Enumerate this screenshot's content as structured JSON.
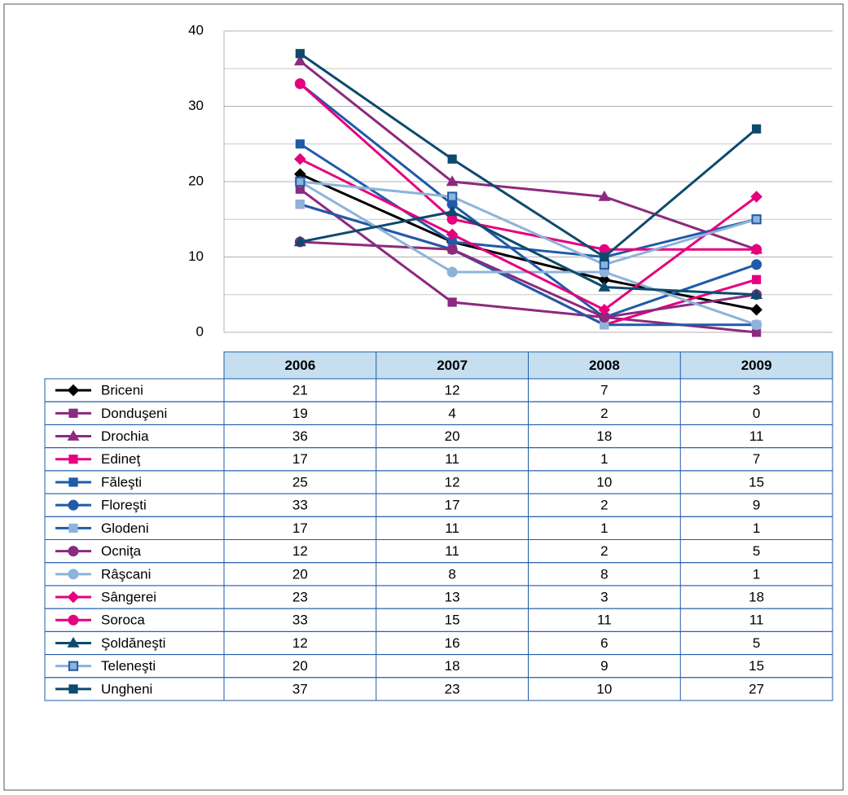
{
  "chart_data": {
    "type": "line",
    "categories": [
      "2006",
      "2007",
      "2008",
      "2009"
    ],
    "ylim": [
      0,
      40
    ],
    "yticks": [
      0,
      10,
      20,
      30,
      40
    ],
    "minor_grid": [
      5,
      15,
      25,
      35
    ],
    "grid": true,
    "series": [
      {
        "name": "Briceni",
        "color": "#000000",
        "marker": "diamond",
        "values": [
          21,
          12,
          7,
          3
        ]
      },
      {
        "name": "Donduşeni",
        "color": "#8b2a7e",
        "marker": "square",
        "values": [
          19,
          4,
          2,
          0
        ]
      },
      {
        "name": "Drochia",
        "color": "#8b2a7e",
        "marker": "triangle",
        "values": [
          36,
          20,
          18,
          11
        ]
      },
      {
        "name": "Edineţ",
        "color": "#e6007e",
        "marker": "square",
        "values": [
          17,
          11,
          1,
          7
        ]
      },
      {
        "name": "Făleşti",
        "color": "#1f5ba8",
        "marker": "square",
        "values": [
          25,
          12,
          10,
          15
        ]
      },
      {
        "name": "Floreşti",
        "color": "#1f5ba8",
        "marker": "circle",
        "values": [
          33,
          17,
          2,
          9
        ]
      },
      {
        "name": "Glodeni",
        "color": "#1f5ba8",
        "marker": "square",
        "marker_color": "#8db3d9",
        "values": [
          17,
          11,
          1,
          1
        ]
      },
      {
        "name": "Ocniţa",
        "color": "#8b2a7e",
        "marker": "circle",
        "values": [
          12,
          11,
          2,
          5
        ]
      },
      {
        "name": "Râşcani",
        "color": "#8db3d9",
        "marker": "circle",
        "values": [
          20,
          8,
          8,
          1
        ]
      },
      {
        "name": "Sângerei",
        "color": "#e6007e",
        "marker": "diamond",
        "values": [
          23,
          13,
          3,
          18
        ]
      },
      {
        "name": "Soroca",
        "color": "#e6007e",
        "marker": "circle",
        "values": [
          33,
          15,
          11,
          11
        ]
      },
      {
        "name": "Şoldăneşti",
        "color": "#0d4a6e",
        "marker": "triangle",
        "values": [
          12,
          16,
          6,
          5
        ]
      },
      {
        "name": "Teleneşti",
        "color": "#8db3d9",
        "marker": "square",
        "marker_stroke": "#1f5ba8",
        "values": [
          20,
          18,
          9,
          15
        ]
      },
      {
        "name": "Ungheni",
        "color": "#0d4a6e",
        "marker": "square",
        "values": [
          37,
          23,
          10,
          27
        ]
      }
    ]
  }
}
